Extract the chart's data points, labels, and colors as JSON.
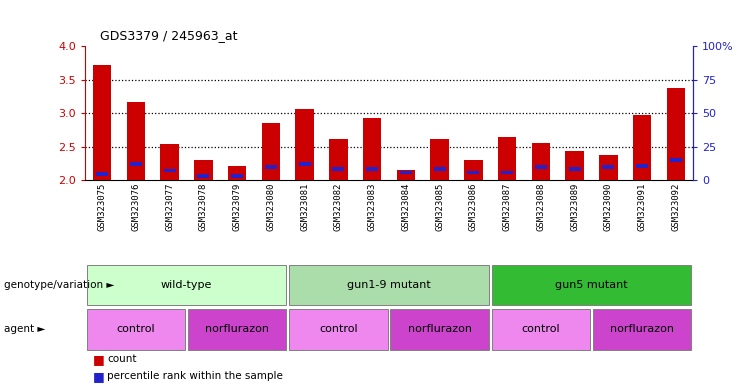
{
  "title": "GDS3379 / 245963_at",
  "samples": [
    "GSM323075",
    "GSM323076",
    "GSM323077",
    "GSM323078",
    "GSM323079",
    "GSM323080",
    "GSM323081",
    "GSM323082",
    "GSM323083",
    "GSM323084",
    "GSM323085",
    "GSM323086",
    "GSM323087",
    "GSM323088",
    "GSM323089",
    "GSM323090",
    "GSM323091",
    "GSM323092"
  ],
  "red_values": [
    3.72,
    3.17,
    2.55,
    2.3,
    2.22,
    2.86,
    3.06,
    2.62,
    2.93,
    2.15,
    2.62,
    2.3,
    2.65,
    2.56,
    2.44,
    2.38,
    2.97,
    3.38
  ],
  "blue_values": [
    2.1,
    2.25,
    2.15,
    2.07,
    2.07,
    2.2,
    2.25,
    2.17,
    2.17,
    2.12,
    2.17,
    2.12,
    2.12,
    2.2,
    2.17,
    2.2,
    2.22,
    2.3
  ],
  "ylim_left": [
    2.0,
    4.0
  ],
  "ylim_right": [
    0,
    100
  ],
  "yticks_left": [
    2.0,
    2.5,
    3.0,
    3.5,
    4.0
  ],
  "yticks_right": [
    0,
    25,
    50,
    75,
    100
  ],
  "ytick_labels_right": [
    "0",
    "25",
    "50",
    "75",
    "100%"
  ],
  "hlines": [
    2.5,
    3.0,
    3.5
  ],
  "bar_color": "#cc0000",
  "blue_color": "#2222cc",
  "genotype_groups": [
    {
      "label": "wild-type",
      "start": 0,
      "end": 5,
      "color": "#ccffcc"
    },
    {
      "label": "gun1-9 mutant",
      "start": 6,
      "end": 11,
      "color": "#aaddaa"
    },
    {
      "label": "gun5 mutant",
      "start": 12,
      "end": 17,
      "color": "#33bb33"
    }
  ],
  "agent_groups": [
    {
      "label": "control",
      "start": 0,
      "end": 2,
      "color": "#ee88ee"
    },
    {
      "label": "norflurazon",
      "start": 3,
      "end": 5,
      "color": "#cc44cc"
    },
    {
      "label": "control",
      "start": 6,
      "end": 8,
      "color": "#ee88ee"
    },
    {
      "label": "norflurazon",
      "start": 9,
      "end": 11,
      "color": "#cc44cc"
    },
    {
      "label": "control",
      "start": 12,
      "end": 14,
      "color": "#ee88ee"
    },
    {
      "label": "norflurazon",
      "start": 15,
      "end": 17,
      "color": "#cc44cc"
    }
  ],
  "legend_count_color": "#cc0000",
  "legend_pct_color": "#2222cc",
  "ax_left_color": "#cc0000",
  "ax_right_color": "#2222cc",
  "xtick_bg_color": "#cccccc",
  "geno_label": "genotype/variation",
  "agent_label": "agent"
}
